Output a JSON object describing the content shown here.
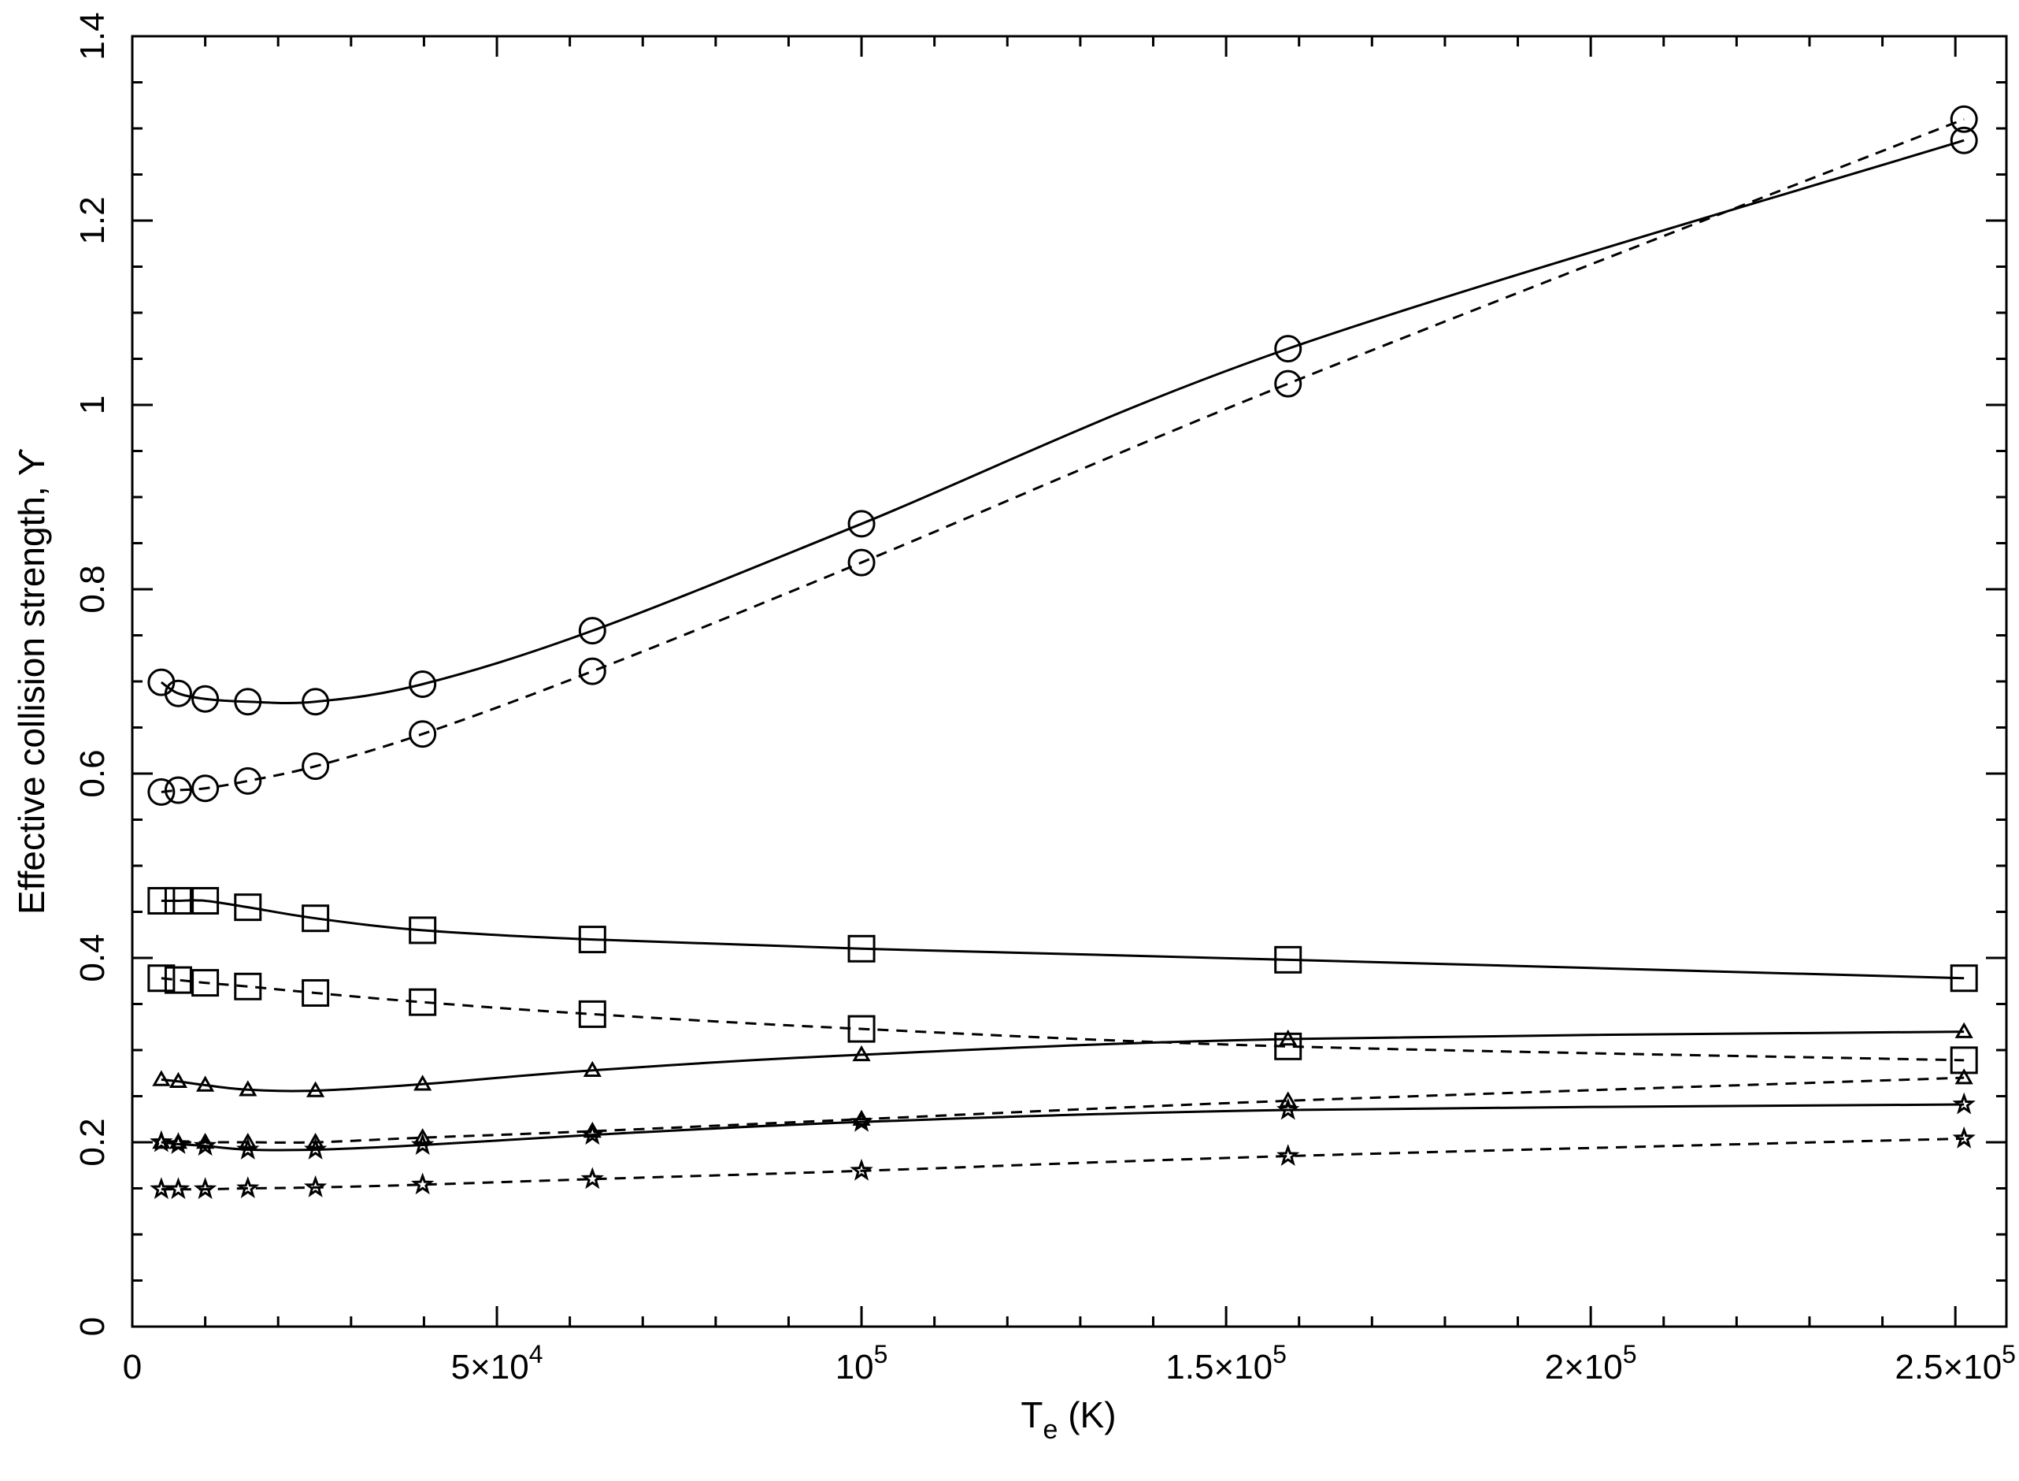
{
  "chart_data": {
    "type": "line",
    "title": "",
    "xlabel": "T_e (K)",
    "xlabel_main": "T",
    "xlabel_sub": "e",
    "xlabel_rest": " (K)",
    "ylabel": "Effective collision strength, ϒ",
    "xlim": [
      0,
      257000
    ],
    "ylim": [
      0,
      1.4
    ],
    "grid": false,
    "legend": "none",
    "x_ticks": [
      {
        "value": 0,
        "base": "0",
        "exp": ""
      },
      {
        "value": 50000,
        "base": "5×10",
        "exp": "4"
      },
      {
        "value": 100000,
        "base": "10",
        "exp": "5"
      },
      {
        "value": 150000,
        "base": "1.5×10",
        "exp": "5"
      },
      {
        "value": 200000,
        "base": "2×10",
        "exp": "5"
      },
      {
        "value": 250000,
        "base": "2.5×10",
        "exp": "5"
      }
    ],
    "y_ticks": [
      {
        "value": 0,
        "label": "0"
      },
      {
        "value": 0.2,
        "label": "0.2"
      },
      {
        "value": 0.4,
        "label": "0.4"
      },
      {
        "value": 0.6,
        "label": "0.6"
      },
      {
        "value": 0.8,
        "label": "0.8"
      },
      {
        "value": 1.0,
        "label": "1"
      },
      {
        "value": 1.2,
        "label": "1.2"
      },
      {
        "value": 1.4,
        "label": "1.4"
      }
    ],
    "x": [
      3981,
      6310,
      10000,
      15849,
      25119,
      39811,
      63096,
      100000,
      158489,
      251189
    ],
    "series": [
      {
        "marker": "circle",
        "line": "solid",
        "values": [
          0.699,
          0.687,
          0.681,
          0.678,
          0.678,
          0.697,
          0.755,
          0.871,
          1.061,
          1.287
        ]
      },
      {
        "marker": "circle",
        "line": "dashed",
        "values": [
          0.58,
          0.582,
          0.584,
          0.592,
          0.608,
          0.643,
          0.711,
          0.829,
          1.023,
          1.31
        ]
      },
      {
        "marker": "square",
        "line": "solid",
        "values": [
          0.462,
          0.462,
          0.462,
          0.455,
          0.443,
          0.43,
          0.42,
          0.41,
          0.398,
          0.378
        ]
      },
      {
        "marker": "square",
        "line": "dashed",
        "values": [
          0.378,
          0.376,
          0.373,
          0.369,
          0.362,
          0.352,
          0.339,
          0.323,
          0.304,
          0.289
        ]
      },
      {
        "marker": "triangle",
        "line": "solid",
        "values": [
          0.268,
          0.266,
          0.262,
          0.257,
          0.256,
          0.263,
          0.278,
          0.295,
          0.312,
          0.32
        ]
      },
      {
        "marker": "triangle",
        "line": "dashed",
        "values": [
          0.2,
          0.2,
          0.2,
          0.2,
          0.2,
          0.205,
          0.212,
          0.225,
          0.245,
          0.27
        ]
      },
      {
        "marker": "star",
        "line": "solid",
        "values": [
          0.2,
          0.198,
          0.196,
          0.192,
          0.192,
          0.197,
          0.208,
          0.222,
          0.235,
          0.241
        ]
      },
      {
        "marker": "star",
        "line": "dashed",
        "values": [
          0.149,
          0.149,
          0.149,
          0.15,
          0.151,
          0.154,
          0.16,
          0.169,
          0.185,
          0.204
        ]
      }
    ]
  }
}
